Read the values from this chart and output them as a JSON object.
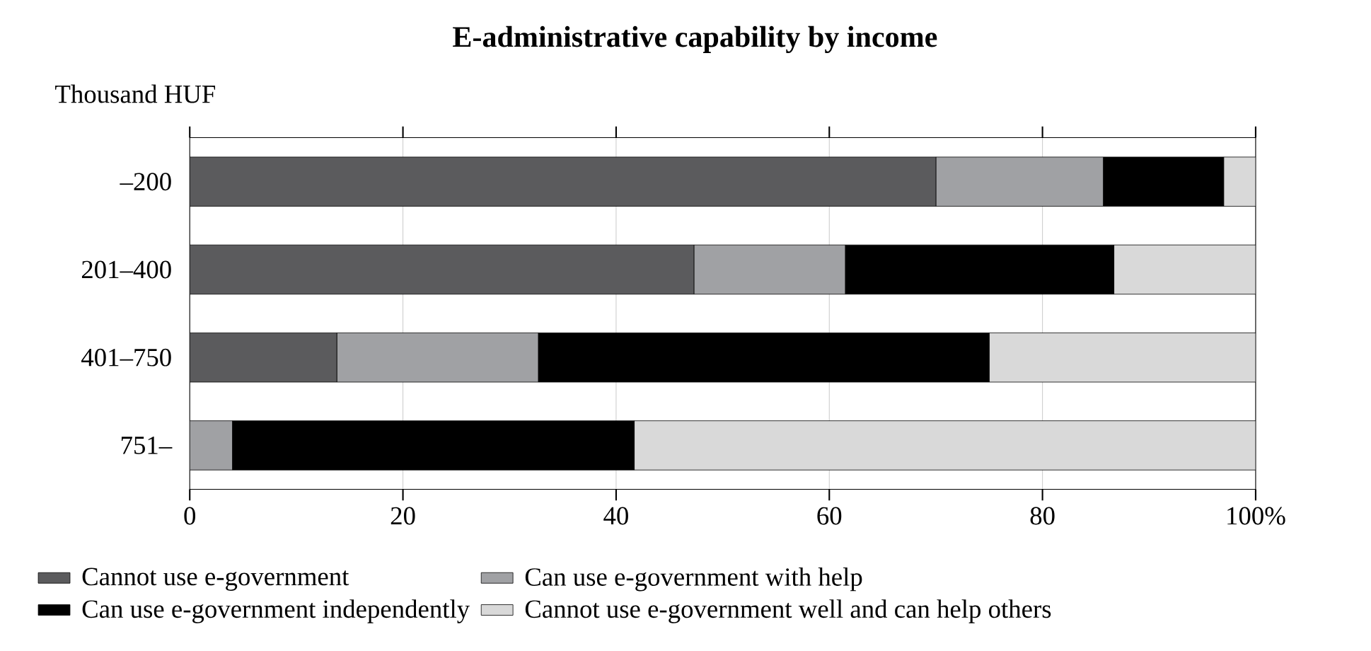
{
  "chart_data": {
    "type": "bar",
    "orientation": "horizontal",
    "stacked": true,
    "title": "E-administrative capability by income",
    "ylabel": "Thousand HUF",
    "categories": [
      "–200",
      "201–400",
      "401–750",
      "751–"
    ],
    "series": [
      {
        "name": "Cannot use e-government",
        "color": "#5b5b5d",
        "values": [
          70,
          47.3,
          13.8,
          0
        ]
      },
      {
        "name": "Can use e-government with help",
        "color": "#a0a1a4",
        "values": [
          15.7,
          14.2,
          18.9,
          4
        ]
      },
      {
        "name": "Can use e-government independently",
        "color": "#000000",
        "values": [
          11.3,
          25.2,
          42.3,
          37.7
        ]
      },
      {
        "name": "Cannot use e-government well and can help others",
        "color": "#d9d9d9",
        "values": [
          3,
          13.3,
          25,
          58.3
        ]
      }
    ],
    "xlim": [
      0,
      100
    ],
    "xticks": [
      0,
      20,
      40,
      60,
      80,
      {
        "value": 100,
        "label": "100%"
      }
    ],
    "grid": "x",
    "legend": "bottom"
  }
}
